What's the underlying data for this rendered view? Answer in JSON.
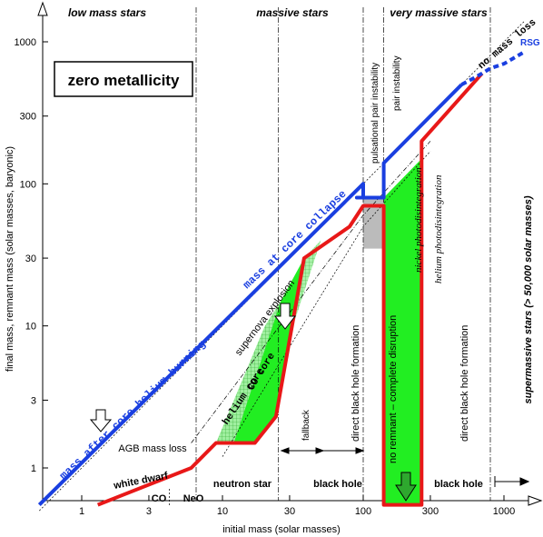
{
  "chart_data": {
    "type": "line",
    "title": "",
    "xlabel": "initial mass (solar masses)",
    "ylabel": "final mass, remnant mass (solar masses, baryonic)",
    "x_scale": "log",
    "y_scale": "log",
    "xlim": [
      0.5,
      1400
    ],
    "ylim": [
      0.55,
      1500
    ],
    "x_ticks": [
      {
        "value": 1,
        "label": "1"
      },
      {
        "value": 3,
        "label": "3"
      },
      {
        "value": 10,
        "label": "10"
      },
      {
        "value": 30,
        "label": "30"
      },
      {
        "value": 100,
        "label": "100"
      },
      {
        "value": 300,
        "label": "300"
      },
      {
        "value": 1000,
        "label": "1000"
      }
    ],
    "y_ticks": [
      {
        "value": 1,
        "label": "1"
      },
      {
        "value": 3,
        "label": "3"
      },
      {
        "value": 10,
        "label": "10"
      },
      {
        "value": 30,
        "label": "30"
      },
      {
        "value": 100,
        "label": "100"
      },
      {
        "value": 300,
        "label": "300"
      },
      {
        "value": 1000,
        "label": "1000"
      }
    ],
    "box_label": "zero metallicity",
    "top_regions": [
      "low mass stars",
      "massive stars",
      "very massive stars"
    ],
    "side_label": "supermassive stars (> 50,000 solar masses)",
    "series": [
      {
        "key": "blue_final",
        "color": "#1a3fe0",
        "x": [
          0.5,
          100,
          100,
          90,
          90,
          140,
          140,
          500
        ],
        "y": [
          0.55,
          100,
          80,
          80,
          80,
          80,
          140,
          500
        ]
      },
      {
        "key": "red_remnant",
        "color": "#e81818",
        "x": [
          1.3,
          6,
          9,
          17,
          24,
          38,
          80,
          100,
          140,
          140,
          260,
          260,
          700
        ],
        "y": [
          0.55,
          1.0,
          1.5,
          1.5,
          2.3,
          30,
          50,
          70,
          70,
          0.55,
          0.55,
          200,
          600
        ]
      }
    ],
    "blue_dashed": {
      "x": [
        500,
        600,
        700,
        800,
        1000,
        1400
      ],
      "y": [
        500,
        550,
        600,
        650,
        700,
        850
      ]
    },
    "no_mass_loss": {
      "x": [
        0.5,
        1400
      ],
      "y": [
        0.5,
        1400
      ]
    },
    "helium_core_line": {
      "x": [
        6,
        100,
        300
      ],
      "y": [
        1.5,
        60,
        200
      ]
    },
    "co_core_line": {
      "x": [
        10,
        100,
        300
      ],
      "y": [
        1.2,
        50,
        170
      ]
    },
    "vlines": [
      {
        "x": 6.5,
        "style": "dashdot"
      },
      {
        "x": 25,
        "style": "dashdot"
      },
      {
        "x": 100,
        "style": "dashdot"
      },
      {
        "x": 140,
        "style": "dashdot"
      },
      {
        "x": 800,
        "style": "dashdot"
      }
    ],
    "labels": {
      "mass_after_he": "mass after core helium burning",
      "mass_at_collapse": "mass at core collapse",
      "supernova_explosion": "supernova explosion",
      "helium_core": "helium core",
      "co_core": "CO core",
      "agb_mass_loss": "AGB mass loss",
      "white_dwarf": "white dwarf",
      "co": "CO",
      "neo": "NeO",
      "neutron_star": "neutron star",
      "black_hole_1": "black hole",
      "black_hole_2": "black hole",
      "fallback": "fallback",
      "direct_bh_1": "direct black hole formation",
      "direct_bh_2": "direct black hole formation",
      "pulsational": "pulsational pair instability",
      "pair_instability": "pair instability",
      "nickel_photo": "nickel photodisintegration",
      "helium_photo": "helium photodisintegration",
      "no_remnant": "no remnant – complete disruption",
      "no_mass_loss": "no mass loss",
      "rsg": "RSG"
    }
  }
}
